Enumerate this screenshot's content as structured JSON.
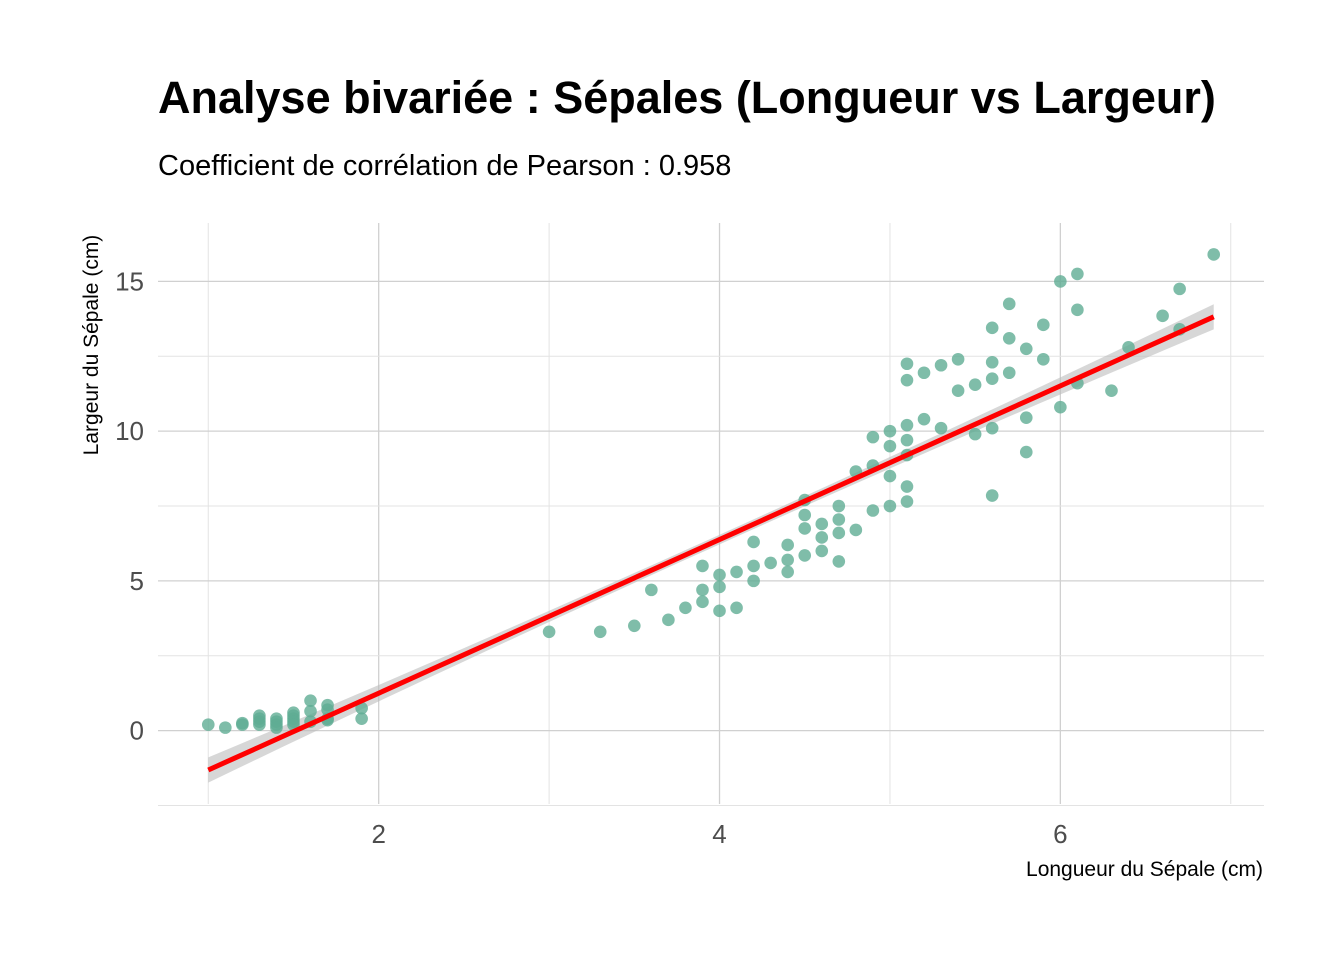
{
  "chart_data": {
    "type": "scatter",
    "title": "Analyse bivariée : Sépales (Longueur vs Largeur)",
    "subtitle": "Coefficient de corrélation de Pearson : 0.958",
    "xlabel": "Longueur du Sépale (cm)",
    "ylabel": "Largeur du Sépale (cm)",
    "xlim": [
      0.705,
      7.195
    ],
    "ylim": [
      -2.45,
      16.95
    ],
    "x_ticks": [
      2,
      4,
      6
    ],
    "y_ticks": [
      0,
      5,
      10,
      15
    ],
    "grid": true,
    "point_color": "#5fac94",
    "line_color": "#ff0000",
    "band_color": "#bdbdbd",
    "series": [
      {
        "name": "observations",
        "points": [
          [
            1.0,
            0.2
          ],
          [
            1.1,
            0.1
          ],
          [
            1.2,
            0.2
          ],
          [
            1.2,
            0.25
          ],
          [
            1.3,
            0.5
          ],
          [
            1.3,
            0.4
          ],
          [
            1.3,
            0.3
          ],
          [
            1.3,
            0.2
          ],
          [
            1.4,
            0.4
          ],
          [
            1.4,
            0.3
          ],
          [
            1.4,
            0.2
          ],
          [
            1.4,
            0.1
          ],
          [
            1.5,
            0.6
          ],
          [
            1.5,
            0.5
          ],
          [
            1.5,
            0.4
          ],
          [
            1.5,
            0.3
          ],
          [
            1.5,
            0.2
          ],
          [
            1.6,
            1.0
          ],
          [
            1.6,
            0.65
          ],
          [
            1.6,
            0.3
          ],
          [
            1.7,
            0.85
          ],
          [
            1.7,
            0.7
          ],
          [
            1.7,
            0.4
          ],
          [
            1.7,
            0.35
          ],
          [
            1.9,
            0.75
          ],
          [
            1.9,
            0.4
          ],
          [
            3.0,
            3.3
          ],
          [
            3.3,
            3.3
          ],
          [
            3.5,
            3.5
          ],
          [
            3.6,
            4.7
          ],
          [
            3.7,
            3.7
          ],
          [
            3.8,
            4.1
          ],
          [
            3.9,
            5.5
          ],
          [
            3.9,
            4.7
          ],
          [
            3.9,
            4.3
          ],
          [
            4.0,
            5.2
          ],
          [
            4.0,
            4.8
          ],
          [
            4.0,
            4.0
          ],
          [
            4.1,
            5.3
          ],
          [
            4.1,
            4.1
          ],
          [
            4.2,
            6.3
          ],
          [
            4.2,
            5.5
          ],
          [
            4.2,
            5.0
          ],
          [
            4.3,
            5.6
          ],
          [
            4.4,
            6.2
          ],
          [
            4.4,
            5.7
          ],
          [
            4.4,
            5.3
          ],
          [
            4.5,
            7.7
          ],
          [
            4.5,
            7.2
          ],
          [
            4.5,
            6.75
          ],
          [
            4.5,
            5.85
          ],
          [
            4.6,
            6.9
          ],
          [
            4.6,
            6.45
          ],
          [
            4.6,
            6.0
          ],
          [
            4.7,
            7.5
          ],
          [
            4.7,
            7.05
          ],
          [
            4.7,
            6.6
          ],
          [
            4.7,
            5.65
          ],
          [
            4.8,
            8.65
          ],
          [
            4.8,
            6.7
          ],
          [
            4.9,
            9.8
          ],
          [
            4.9,
            8.85
          ],
          [
            4.9,
            7.35
          ],
          [
            5.0,
            10.0
          ],
          [
            5.0,
            9.5
          ],
          [
            5.0,
            8.5
          ],
          [
            5.0,
            7.5
          ],
          [
            5.1,
            12.25
          ],
          [
            5.1,
            11.7
          ],
          [
            5.1,
            10.2
          ],
          [
            5.1,
            9.7
          ],
          [
            5.1,
            9.2
          ],
          [
            5.1,
            8.15
          ],
          [
            5.1,
            7.65
          ],
          [
            5.2,
            11.95
          ],
          [
            5.2,
            10.4
          ],
          [
            5.3,
            12.2
          ],
          [
            5.3,
            10.1
          ],
          [
            5.4,
            12.4
          ],
          [
            5.4,
            11.35
          ],
          [
            5.5,
            11.55
          ],
          [
            5.5,
            9.9
          ],
          [
            5.6,
            13.45
          ],
          [
            5.6,
            12.3
          ],
          [
            5.6,
            11.75
          ],
          [
            5.6,
            10.1
          ],
          [
            5.6,
            7.85
          ],
          [
            5.7,
            14.25
          ],
          [
            5.7,
            13.1
          ],
          [
            5.7,
            11.95
          ],
          [
            5.8,
            12.75
          ],
          [
            5.8,
            10.45
          ],
          [
            5.8,
            9.3
          ],
          [
            5.9,
            13.55
          ],
          [
            5.9,
            12.4
          ],
          [
            6.0,
            15.0
          ],
          [
            6.0,
            10.8
          ],
          [
            6.1,
            15.25
          ],
          [
            6.1,
            14.05
          ],
          [
            6.1,
            11.6
          ],
          [
            6.3,
            11.35
          ],
          [
            6.4,
            12.8
          ],
          [
            6.6,
            13.85
          ],
          [
            6.7,
            14.75
          ],
          [
            6.7,
            13.4
          ],
          [
            6.9,
            15.9
          ]
        ]
      }
    ],
    "regression": {
      "x_range": [
        1.0,
        6.9
      ],
      "intercept": -3.88,
      "slope": 2.565,
      "ci_half_width_ends": 0.42,
      "ci_half_width_center": 0.16
    }
  }
}
